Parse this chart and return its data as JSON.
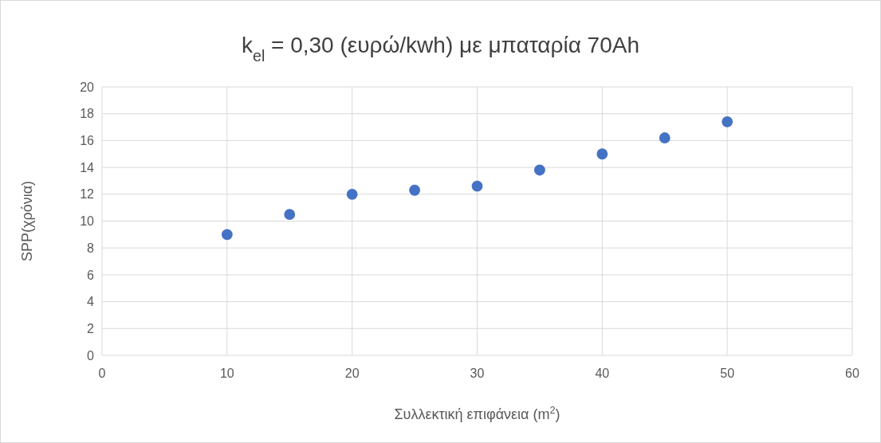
{
  "chart_data": {
    "type": "scatter",
    "title": "k$_{el}$ = 0,30 (ευρώ/kwh) με μπαταρία 70Ah",
    "xlabel": "Συλλεκτική επιφάνεια (m$^{2}$)",
    "ylabel": "SPP(χρόνια)",
    "x": [
      10,
      15,
      20,
      25,
      30,
      35,
      40,
      45,
      50
    ],
    "series": [
      {
        "color": "#4472c4",
        "values": [
          9.0,
          10.5,
          12.0,
          12.3,
          12.6,
          13.8,
          15.0,
          16.2,
          17.4
        ]
      }
    ],
    "xlim": [
      0,
      60
    ],
    "xticks": [
      0,
      10,
      20,
      30,
      40,
      50,
      60
    ],
    "ylim": [
      0,
      20
    ],
    "yticks": [
      0,
      2,
      4,
      6,
      8,
      10,
      12,
      14,
      16,
      18,
      20
    ],
    "grid": true,
    "marker": "circle"
  }
}
